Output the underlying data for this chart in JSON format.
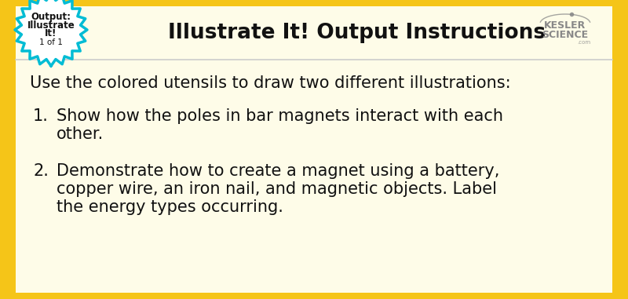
{
  "title": "Illustrate It! Output Instructions",
  "badge_line1": "Output:",
  "badge_line2": "Illustrate",
  "badge_line3": "It!",
  "badge_line4": "1 of 1",
  "intro_text": "Use the colored utensils to draw two different illustrations:",
  "item1_number": "1.",
  "item1_line1": "Show how the poles in bar magnets interact with each",
  "item1_line2": "other.",
  "item2_number": "2.",
  "item2_line1": "Demonstrate how to create a magnet using a battery,",
  "item2_line2": "copper wire, an iron nail, and magnetic objects. Label",
  "item2_line3": "the energy types occurring.",
  "bg_color": "#FEFCE8",
  "border_color": "#F5C518",
  "header_text_color": "#111111",
  "badge_border_color": "#00BCD4",
  "badge_fill_color": "#FFFFFF",
  "body_text_color": "#111111",
  "kesler_color": "#888888",
  "title_fontsize": 19,
  "body_fontsize": 15,
  "badge_fontsize": 8.5
}
